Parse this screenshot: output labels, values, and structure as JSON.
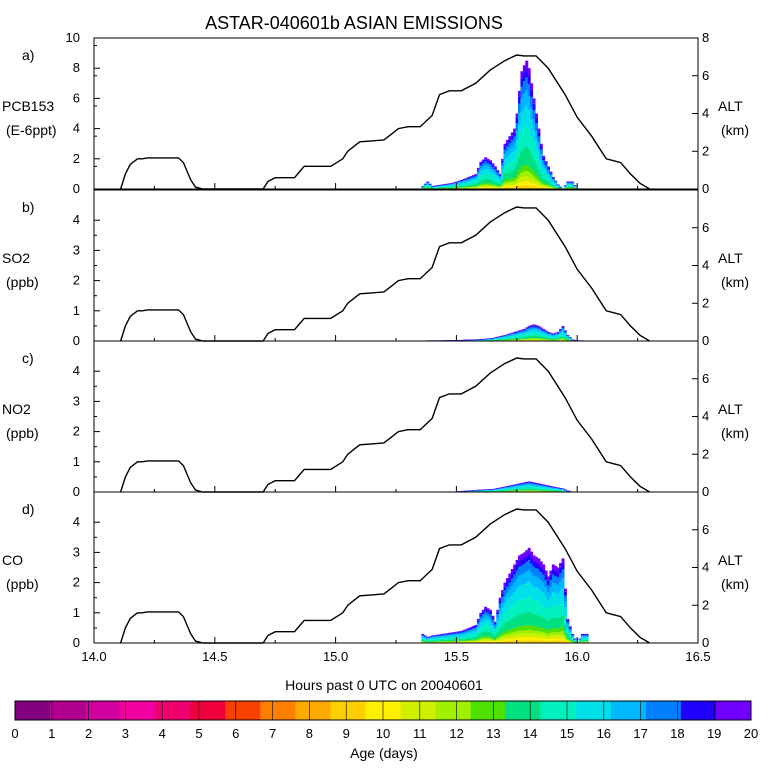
{
  "title": "ASTAR-040601b ASIAN EMISSIONS",
  "xlabel": "Hours past 0 UTC on 20040601",
  "colorbar": {
    "label": "Age (days)",
    "ticks": [
      "0",
      "1",
      "2",
      "3",
      "4",
      "5",
      "6",
      "7",
      "8",
      "9",
      "10",
      "11",
      "12",
      "13",
      "14",
      "15",
      "16",
      "17",
      "18",
      "19",
      "20"
    ],
    "colors": [
      "#800080",
      "#b0008f",
      "#d0009f",
      "#f000a0",
      "#f0006f",
      "#f0003c",
      "#f84000",
      "#ff8000",
      "#ffaa00",
      "#ffd000",
      "#fff000",
      "#d0f000",
      "#a0f000",
      "#50e000",
      "#00e080",
      "#00f0c0",
      "#00e0e8",
      "#00b8ff",
      "#0080ff",
      "#2000ff",
      "#7000ff"
    ]
  },
  "chart_data": [
    {
      "type": "area",
      "panel_label": "a)",
      "ylabel": [
        "PCB153",
        "(E-6ppt)"
      ],
      "ylim": [
        0,
        10
      ],
      "yticks": [
        "0",
        "2",
        "4",
        "6",
        "8",
        "10"
      ],
      "y2label": [
        "ALT",
        "(km)"
      ],
      "y2lim": [
        0,
        8
      ],
      "y2ticks": [
        "0",
        "2",
        "4",
        "6",
        "8"
      ],
      "xlim": [
        14.0,
        16.5
      ],
      "xticks": [
        "14.0",
        "14.5",
        "15.0",
        "15.5",
        "16.0",
        "16.5"
      ],
      "total_series": {
        "x": [
          15.36,
          15.38,
          15.4,
          15.44,
          15.48,
          15.52,
          15.55,
          15.58,
          15.6,
          15.62,
          15.64,
          15.66,
          15.68,
          15.7,
          15.72,
          15.74,
          15.75,
          15.76,
          15.77,
          15.78,
          15.79,
          15.8,
          15.81,
          15.82,
          15.83,
          15.84,
          15.85,
          15.86,
          15.88,
          15.9,
          15.92,
          15.94,
          15.96,
          15.98,
          16.0,
          16.02,
          16.04
        ],
        "values": [
          0.2,
          0.5,
          0.2,
          0.3,
          0.4,
          0.6,
          0.8,
          1.0,
          1.8,
          2.1,
          1.9,
          1.5,
          1.0,
          3.0,
          3.5,
          4.0,
          5.0,
          6.5,
          7.8,
          8.2,
          8.5,
          8.0,
          7.0,
          6.0,
          5.0,
          4.0,
          3.0,
          2.2,
          1.5,
          0.8,
          0.3,
          0.0,
          0.5,
          0.5,
          0.0,
          0.0,
          0.0
        ]
      },
      "altitude_km": {
        "x": [
          14.11,
          14.13,
          14.15,
          14.18,
          14.2,
          14.22,
          14.25,
          14.3,
          14.35,
          14.37,
          14.4,
          14.42,
          14.45,
          14.5,
          14.55,
          14.6,
          14.65,
          14.7,
          14.72,
          14.75,
          14.8,
          14.83,
          14.85,
          14.87,
          14.9,
          14.95,
          14.98,
          15.03,
          15.05,
          15.08,
          15.1,
          15.15,
          15.2,
          15.23,
          15.26,
          15.3,
          15.35,
          15.4,
          15.43,
          15.47,
          15.52,
          15.58,
          15.64,
          15.7,
          15.75,
          15.78,
          15.83,
          15.88,
          15.95,
          16.0,
          16.06,
          16.12,
          16.15,
          16.18,
          16.22,
          16.26,
          16.3
        ],
        "values": [
          0.0,
          0.8,
          1.3,
          1.6,
          1.6,
          1.65,
          1.65,
          1.65,
          1.65,
          1.4,
          0.5,
          0.1,
          0.0,
          0.0,
          0.0,
          0.0,
          0.0,
          0.0,
          0.4,
          0.6,
          0.6,
          0.6,
          0.9,
          1.2,
          1.2,
          1.2,
          1.2,
          1.6,
          2.0,
          2.3,
          2.5,
          2.55,
          2.6,
          2.9,
          3.2,
          3.3,
          3.3,
          3.9,
          5.0,
          5.2,
          5.2,
          5.6,
          6.3,
          6.8,
          7.1,
          7.05,
          7.05,
          6.4,
          5.0,
          3.8,
          2.8,
          1.6,
          1.5,
          1.4,
          0.8,
          0.3,
          0.0
        ]
      }
    },
    {
      "type": "area",
      "panel_label": "b)",
      "ylabel": [
        "SO2",
        "(ppb)"
      ],
      "ylim": [
        0,
        5
      ],
      "yticks": [
        "0",
        "1",
        "2",
        "3",
        "4"
      ],
      "y2label": [
        "ALT",
        "(km)"
      ],
      "y2lim": [
        0,
        8
      ],
      "y2ticks": [
        "0",
        "2",
        "4",
        "6"
      ],
      "xlim": [
        14.0,
        16.5
      ],
      "xticks": [
        "14.0",
        "14.5",
        "15.0",
        "15.5",
        "16.0",
        "16.5"
      ],
      "total_series": {
        "x": [
          15.38,
          15.42,
          15.5,
          15.6,
          15.65,
          15.7,
          15.74,
          15.78,
          15.8,
          15.82,
          15.84,
          15.86,
          15.88,
          15.9,
          15.92,
          15.94,
          15.96,
          15.98,
          16.0,
          16.02,
          16.04
        ],
        "values": [
          0.02,
          0.02,
          0.03,
          0.06,
          0.1,
          0.2,
          0.3,
          0.4,
          0.5,
          0.55,
          0.5,
          0.4,
          0.3,
          0.25,
          0.3,
          0.5,
          0.2,
          0.05,
          0.02,
          0.02,
          0.0
        ]
      },
      "altitude_km": {
        "x": [
          14.11,
          14.13,
          14.15,
          14.18,
          14.2,
          14.22,
          14.25,
          14.3,
          14.35,
          14.37,
          14.4,
          14.42,
          14.45,
          14.5,
          14.55,
          14.6,
          14.65,
          14.7,
          14.72,
          14.75,
          14.8,
          14.83,
          14.85,
          14.87,
          14.9,
          14.95,
          14.98,
          15.03,
          15.05,
          15.08,
          15.1,
          15.15,
          15.2,
          15.23,
          15.26,
          15.3,
          15.35,
          15.4,
          15.43,
          15.47,
          15.52,
          15.58,
          15.64,
          15.7,
          15.75,
          15.78,
          15.83,
          15.88,
          15.95,
          16.0,
          16.06,
          16.12,
          16.15,
          16.18,
          16.22,
          16.26,
          16.3
        ],
        "values": [
          0.0,
          0.8,
          1.3,
          1.6,
          1.6,
          1.65,
          1.65,
          1.65,
          1.65,
          1.4,
          0.5,
          0.1,
          0.0,
          0.0,
          0.0,
          0.0,
          0.0,
          0.0,
          0.4,
          0.6,
          0.6,
          0.6,
          0.9,
          1.2,
          1.2,
          1.2,
          1.2,
          1.6,
          2.0,
          2.3,
          2.5,
          2.55,
          2.6,
          2.9,
          3.2,
          3.3,
          3.3,
          3.9,
          5.0,
          5.2,
          5.2,
          5.6,
          6.3,
          6.8,
          7.1,
          7.05,
          7.05,
          6.4,
          5.0,
          3.8,
          2.8,
          1.6,
          1.5,
          1.4,
          0.8,
          0.3,
          0.0
        ]
      }
    },
    {
      "type": "area",
      "panel_label": "c)",
      "ylabel": [
        "NO2",
        "(ppb)"
      ],
      "ylim": [
        0,
        5
      ],
      "yticks": [
        "0",
        "1",
        "2",
        "3",
        "4"
      ],
      "y2label": [
        "ALT",
        "(km)"
      ],
      "y2lim": [
        0,
        8
      ],
      "y2ticks": [
        "0",
        "2",
        "4",
        "6"
      ],
      "xlim": [
        14.0,
        16.5
      ],
      "xticks": [
        "14.0",
        "14.5",
        "15.0",
        "15.5",
        "16.0",
        "16.5"
      ],
      "total_series": {
        "x": [
          15.5,
          15.55,
          15.6,
          15.65,
          15.7,
          15.74,
          15.78,
          15.8,
          15.82,
          15.86,
          15.9,
          15.94,
          15.96,
          15.98
        ],
        "values": [
          0.02,
          0.05,
          0.08,
          0.1,
          0.18,
          0.25,
          0.32,
          0.35,
          0.32,
          0.25,
          0.18,
          0.12,
          0.05,
          0.0
        ]
      },
      "altitude_km": {
        "x": [
          14.11,
          14.13,
          14.15,
          14.18,
          14.2,
          14.22,
          14.25,
          14.3,
          14.35,
          14.37,
          14.4,
          14.42,
          14.45,
          14.5,
          14.55,
          14.6,
          14.65,
          14.7,
          14.72,
          14.75,
          14.8,
          14.83,
          14.85,
          14.87,
          14.9,
          14.95,
          14.98,
          15.03,
          15.05,
          15.08,
          15.1,
          15.15,
          15.2,
          15.23,
          15.26,
          15.3,
          15.35,
          15.4,
          15.43,
          15.47,
          15.52,
          15.58,
          15.64,
          15.7,
          15.75,
          15.78,
          15.83,
          15.88,
          15.95,
          16.0,
          16.06,
          16.12,
          16.15,
          16.18,
          16.22,
          16.26,
          16.3
        ],
        "values": [
          0.0,
          0.8,
          1.3,
          1.6,
          1.6,
          1.65,
          1.65,
          1.65,
          1.65,
          1.4,
          0.5,
          0.1,
          0.0,
          0.0,
          0.0,
          0.0,
          0.0,
          0.0,
          0.4,
          0.6,
          0.6,
          0.6,
          0.9,
          1.2,
          1.2,
          1.2,
          1.2,
          1.6,
          2.0,
          2.3,
          2.5,
          2.55,
          2.6,
          2.9,
          3.2,
          3.3,
          3.3,
          3.9,
          5.0,
          5.2,
          5.2,
          5.6,
          6.3,
          6.8,
          7.1,
          7.05,
          7.05,
          6.4,
          5.0,
          3.8,
          2.8,
          1.6,
          1.5,
          1.4,
          0.8,
          0.3,
          0.0
        ]
      }
    },
    {
      "type": "area",
      "panel_label": "d)",
      "ylabel": [
        "CO",
        "(ppb)"
      ],
      "ylim": [
        0,
        5
      ],
      "yticks": [
        "0",
        "1",
        "2",
        "3",
        "4"
      ],
      "y2label": [
        "ALT",
        "(km)"
      ],
      "y2lim": [
        0,
        8
      ],
      "y2ticks": [
        "0",
        "2",
        "4",
        "6"
      ],
      "xlim": [
        14.0,
        16.5
      ],
      "xticks": [
        "14.0",
        "14.5",
        "15.0",
        "15.5",
        "16.0",
        "16.5"
      ],
      "total_series": {
        "x": [
          15.36,
          15.38,
          15.4,
          15.44,
          15.48,
          15.52,
          15.55,
          15.58,
          15.6,
          15.62,
          15.64,
          15.66,
          15.68,
          15.7,
          15.72,
          15.74,
          15.76,
          15.78,
          15.8,
          15.82,
          15.84,
          15.86,
          15.88,
          15.9,
          15.92,
          15.94,
          15.96,
          15.98,
          16.0,
          16.02,
          16.04
        ],
        "values": [
          0.3,
          0.2,
          0.25,
          0.3,
          0.35,
          0.4,
          0.5,
          0.6,
          1.0,
          1.2,
          1.1,
          0.7,
          1.5,
          2.0,
          2.3,
          2.6,
          2.9,
          3.0,
          3.15,
          2.9,
          2.8,
          2.6,
          2.2,
          2.6,
          2.5,
          2.8,
          0.8,
          0.3,
          0.0,
          0.3,
          0.3
        ]
      },
      "altitude_km": {
        "x": [
          14.11,
          14.13,
          14.15,
          14.18,
          14.2,
          14.22,
          14.25,
          14.3,
          14.35,
          14.37,
          14.4,
          14.42,
          14.45,
          14.5,
          14.55,
          14.6,
          14.65,
          14.7,
          14.72,
          14.75,
          14.8,
          14.83,
          14.85,
          14.87,
          14.9,
          14.95,
          14.98,
          15.03,
          15.05,
          15.08,
          15.1,
          15.15,
          15.2,
          15.23,
          15.26,
          15.3,
          15.35,
          15.4,
          15.43,
          15.47,
          15.52,
          15.58,
          15.64,
          15.7,
          15.75,
          15.78,
          15.83,
          15.88,
          15.95,
          16.0,
          16.06,
          16.12,
          16.15,
          16.18,
          16.22,
          16.26,
          16.3
        ],
        "values": [
          0.0,
          0.8,
          1.3,
          1.6,
          1.6,
          1.65,
          1.65,
          1.65,
          1.65,
          1.4,
          0.5,
          0.1,
          0.0,
          0.0,
          0.0,
          0.0,
          0.0,
          0.0,
          0.4,
          0.6,
          0.6,
          0.6,
          0.9,
          1.2,
          1.2,
          1.2,
          1.2,
          1.6,
          2.0,
          2.3,
          2.5,
          2.55,
          2.6,
          2.9,
          3.2,
          3.3,
          3.3,
          3.9,
          5.0,
          5.2,
          5.2,
          5.6,
          6.3,
          6.8,
          7.1,
          7.05,
          7.05,
          6.4,
          5.0,
          3.8,
          2.8,
          1.6,
          1.5,
          1.4,
          0.8,
          0.3,
          0.0
        ]
      }
    }
  ]
}
